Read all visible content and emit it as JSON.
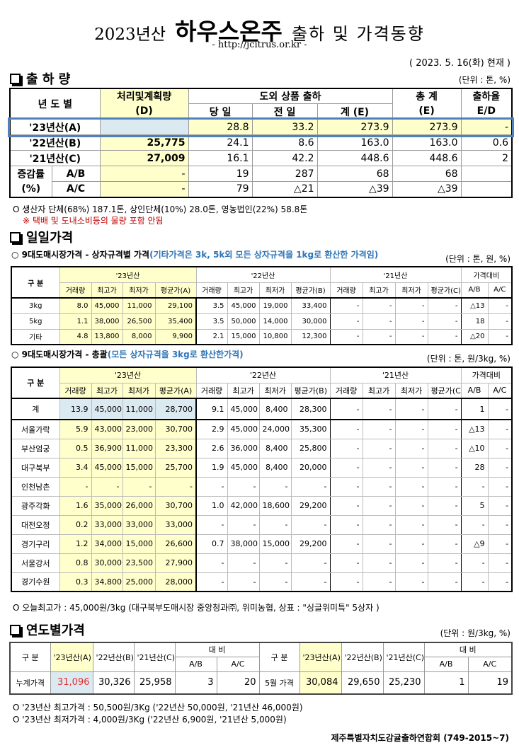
{
  "header": {
    "title_prefix": "2023년산",
    "title_main": "하우스온주",
    "title_suffix": "출하 및 가격동향",
    "url": "- http://jcitrus.or.kr -",
    "date": "( 2023. 5. 16(화) 현재 )"
  },
  "shipment": {
    "section_title": "출 하 량",
    "unit": "(단위 : 톤, %)",
    "headers": {
      "year": "년 도 별",
      "plan": "처리및계획량",
      "plan_sub": "(D)",
      "group": "도외 상품 출하",
      "today": "당 일",
      "prev": "전 일",
      "sum": "계 (E)",
      "total": "총 계",
      "total_sub": "(E)",
      "rate": "출하율",
      "rate_sub": "E/D"
    },
    "rows": [
      {
        "label": "'23년산(A)",
        "d": "",
        "today": "28.8",
        "prev": "33.2",
        "sum": "273.9",
        "total": "273.9",
        "rate": "-"
      },
      {
        "label": "'22년산(B)",
        "d": "25,775",
        "today": "24.1",
        "prev": "8.6",
        "sum": "163.0",
        "total": "163.0",
        "rate": "0.6"
      },
      {
        "label": "'21년산(C)",
        "d": "27,009",
        "today": "16.1",
        "prev": "42.2",
        "sum": "448.6",
        "total": "448.6",
        "rate": "2"
      }
    ],
    "change_label": "증감률",
    "change_unit": "(%)",
    "change_rows": [
      {
        "label": "A/B",
        "d": "-",
        "today": "19",
        "prev": "287",
        "sum": "68",
        "total": "68",
        "rate": ""
      },
      {
        "label": "A/C",
        "d": "-",
        "today": "79",
        "prev": "△21",
        "sum": "△39",
        "total": "△39",
        "rate": ""
      }
    ],
    "note": "O 생산자 단체(68%)  187.1톤,  상인단체(10%) 28.0톤, 영농법인(22%) 58.8톤",
    "note_red": "※ 택배 및 도내소비등의 물량 포함 안됨"
  },
  "daily": {
    "section_title": "일일가격",
    "sub1": {
      "title": "○ 9대도매시장가격 - 상자규격별 가격",
      "note": "(기타가격은 3k, 5k외 모든 상자규격을 1kg로 환산한 가격임)",
      "unit": "(단위 : 톤,  원, %)"
    },
    "sub2": {
      "title": "○ 9대도매시장가격 - 총괄",
      "note": "(모든 상자규격을 3kg로 환산한가격)",
      "unit": "(단위 : 톤, 원/3kg, %)"
    },
    "headers": {
      "category": "구  분",
      "y23": "'23년산",
      "y22": "'22년산",
      "y21": "'21년산",
      "compare": "가격대비",
      "vol": "거래량",
      "max": "최고가",
      "min": "최저가",
      "avg_a": "평균가(A)",
      "avg_b": "평균가(B)",
      "avg_c": "평균가(C)",
      "ab": "A/B",
      "ac": "A/C"
    },
    "by_size": [
      [
        "3kg",
        "8.0",
        "45,000",
        "11,000",
        "29,100",
        "3.5",
        "45,000",
        "19,000",
        "33,400",
        "-",
        "-",
        "-",
        "-",
        "△13",
        "-"
      ],
      [
        "5kg",
        "1.1",
        "38,000",
        "26,500",
        "35,400",
        "3.5",
        "50,000",
        "14,000",
        "30,000",
        "-",
        "-",
        "-",
        "-",
        "18",
        "-"
      ],
      [
        "기타",
        "4.8",
        "13,800",
        "8,000",
        "9,900",
        "2.1",
        "15,000",
        "10,800",
        "12,300",
        "-",
        "-",
        "-",
        "-",
        "△20",
        "-"
      ]
    ],
    "summary": [
      [
        "계",
        "13.9",
        "45,000",
        "11,000",
        "28,700",
        "9.1",
        "45,000",
        "8,400",
        "28,300",
        "-",
        "-",
        "-",
        "-",
        "1",
        "-"
      ],
      [
        "서울가락",
        "5.9",
        "43,000",
        "23,000",
        "30,700",
        "2.9",
        "45,000",
        "24,000",
        "35,300",
        "-",
        "-",
        "-",
        "-",
        "△13",
        "-"
      ],
      [
        "부산엄궁",
        "0.5",
        "36,900",
        "11,000",
        "23,300",
        "2.6",
        "36,000",
        "8,400",
        "25,800",
        "-",
        "-",
        "-",
        "-",
        "△10",
        "-"
      ],
      [
        "대구북부",
        "3.4",
        "45,000",
        "15,000",
        "25,700",
        "1.9",
        "45,000",
        "8,400",
        "20,000",
        "-",
        "-",
        "-",
        "-",
        "28",
        "-"
      ],
      [
        "인천남촌",
        "-",
        "-",
        "-",
        "-",
        "-",
        "-",
        "-",
        "-",
        "-",
        "-",
        "-",
        "-",
        "-",
        "-"
      ],
      [
        "광주각화",
        "1.6",
        "35,000",
        "26,000",
        "30,700",
        "1.0",
        "42,000",
        "18,600",
        "29,200",
        "-",
        "-",
        "-",
        "-",
        "5",
        "-"
      ],
      [
        "대전오정",
        "0.2",
        "33,000",
        "33,000",
        "33,000",
        "-",
        "-",
        "-",
        "-",
        "-",
        "-",
        "-",
        "-",
        "-",
        "-"
      ],
      [
        "경기구리",
        "1.2",
        "34,000",
        "15,000",
        "26,600",
        "0.7",
        "38,000",
        "15,000",
        "29,200",
        "-",
        "-",
        "-",
        "-",
        "△9",
        "-"
      ],
      [
        "서울강서",
        "0.8",
        "30,000",
        "23,500",
        "27,900",
        "-",
        "-",
        "-",
        "-",
        "-",
        "-",
        "-",
        "-",
        "-",
        "-"
      ],
      [
        "경기수원",
        "0.3",
        "34,800",
        "25,000",
        "28,000",
        "-",
        "-",
        "-",
        "-",
        "-",
        "-",
        "-",
        "-",
        "-",
        "-"
      ]
    ],
    "note": "O 오늘최고가 : 45,000원/3kg (대구북부도매시장 중앙청과㈜, 위미농협, 상표 : \"싱글위미특\" 5상자 )"
  },
  "yearly": {
    "section_title": "연도별가격",
    "unit": "(단위 : 원/3kg, %)",
    "headers": {
      "category": "구  분",
      "y23": "'23년산(A)",
      "y22": "'22년산(B)",
      "y21": "'21년산(C)",
      "compare": "대    비",
      "ab": "A/B",
      "ac": "A/C"
    },
    "left": {
      "label": "누계가격",
      "y23": "31,096",
      "y22": "30,326",
      "y21": "25,958",
      "ab": "3",
      "ac": "20"
    },
    "right": {
      "label": "5월 가격",
      "y23": "30,084",
      "y22": "29,650",
      "y21": "25,230",
      "ab": "1",
      "ac": "19"
    },
    "note1": "O  '23년산 최고가격 : 50,500원/3Kg ('22년산 50,000원, '21년산 46,000원)",
    "note2": "O  '23년산 최저가격 :   4,000원/3Kg ('22년산   6,900원, '21년산  5,000원)"
  },
  "footer": "제주특별자치도감귤출하연합회 (749-2015~7)",
  "colors": {
    "highlight_yellow": "#ffffcc",
    "highlight_blue": "#dbe9f1",
    "row_border": "#4f81bd",
    "note_red": "#c00000",
    "note_blue": "#2e75b6",
    "accent_red": "#e03030"
  }
}
